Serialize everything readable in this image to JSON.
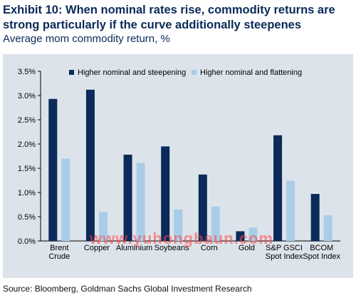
{
  "header": {
    "title": "Exhibit 10: When nominal rates rise, commodity returns are strong particularly if the curve additionally steepenes",
    "subtitle": "Average mom commodity return, %"
  },
  "footer": {
    "source": "Source: Bloomberg, Goldman Sachs Global Investment Research"
  },
  "watermark": "www.yuhongbaun.com",
  "colors": {
    "steepening": "#0b2a5a",
    "flattening": "#a9cde9",
    "title": "#0b2a5a",
    "plot_background": "#dce3ea"
  },
  "chart_data": {
    "type": "bar",
    "title": "Exhibit 10: When nominal rates rise, commodity returns are strong particularly if the curve additionally steepenes",
    "subtitle": "Average mom commodity return, %",
    "categories": [
      [
        "Brent",
        "Crude"
      ],
      [
        "Copper"
      ],
      [
        "Aluminium"
      ],
      [
        "Soybeans"
      ],
      [
        "Corn"
      ],
      [
        "Gold"
      ],
      [
        "S&P GSCI",
        "Spot Index"
      ],
      [
        "BCOM",
        "Spot Index"
      ]
    ],
    "series": [
      {
        "name": "Higher nominal and steepening",
        "color": "#0b2a5a",
        "values": [
          2.93,
          3.12,
          1.78,
          1.95,
          1.37,
          0.2,
          2.18,
          0.97
        ]
      },
      {
        "name": "Higher nominal and flattening",
        "color": "#a9cde9",
        "values": [
          1.7,
          0.6,
          1.61,
          0.65,
          0.71,
          0.28,
          1.24,
          0.53
        ]
      }
    ],
    "ylim": [
      0,
      3.5
    ],
    "yticks": [
      "0.0%",
      "0.5%",
      "1.0%",
      "1.5%",
      "2.0%",
      "2.5%",
      "3.0%",
      "3.5%"
    ],
    "ytick_values": [
      0,
      0.5,
      1.0,
      1.5,
      2.0,
      2.5,
      3.0,
      3.5
    ],
    "grid": false,
    "legend": "top"
  }
}
